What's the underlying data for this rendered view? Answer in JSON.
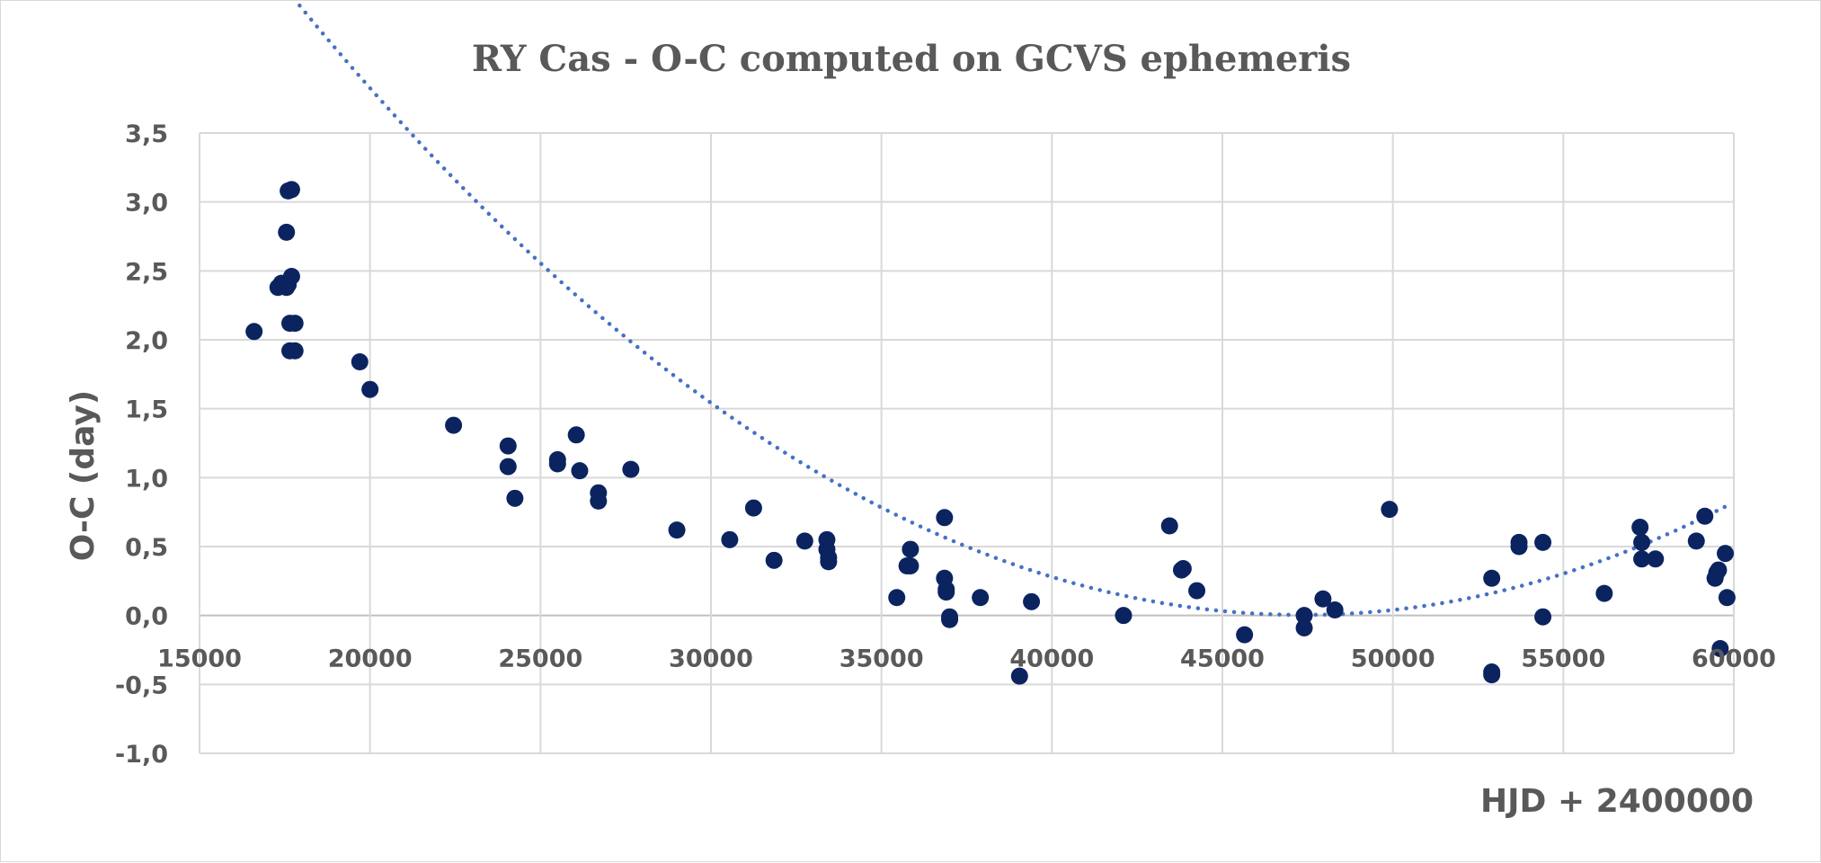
{
  "chart_data": {
    "type": "scatter",
    "title": "RY Cas - O-C computed on GCVS ephemeris",
    "xlabel": "HJD + 2400000",
    "ylabel": "O-C (day)",
    "xlim": [
      15000,
      60000
    ],
    "ylim": [
      -1.0,
      3.5
    ],
    "x_ticks": [
      15000,
      20000,
      25000,
      30000,
      35000,
      40000,
      45000,
      50000,
      55000,
      60000
    ],
    "x_tick_labels": [
      "15000",
      "20000",
      "25000",
      "30000",
      "35000",
      "40000",
      "45000",
      "50000",
      "55000",
      "60000"
    ],
    "y_ticks": [
      3.5,
      3.0,
      2.5,
      2.0,
      1.5,
      1.0,
      0.5,
      0.0,
      -0.5,
      -1.0
    ],
    "y_tick_labels": [
      "3,5",
      "3,0",
      "2,5",
      "2,0",
      "1,5",
      "1,0",
      "0,5",
      "0,0",
      "-0,5",
      "-1,0"
    ],
    "grid": true,
    "legend": "none",
    "colors": {
      "points": "#0b2460",
      "trend": "#4472c4",
      "grid": "#d9d9d9",
      "text": "#595959"
    },
    "series": [
      {
        "marker": "circle",
        "x": [
          16600,
          17300,
          17400,
          17550,
          17600,
          17700,
          17550,
          17650,
          17600,
          17700,
          17800,
          17650,
          17800,
          19700,
          20000,
          22450,
          24050,
          24050,
          24250,
          25500,
          25500,
          26050,
          26150,
          26700,
          26700,
          27650,
          29000,
          30550,
          31250,
          31850,
          32750,
          33400,
          33400,
          33450,
          33450,
          35450,
          35750,
          35850,
          35850,
          36850,
          36850,
          36900,
          36900,
          37000,
          37000,
          37900,
          39050,
          39400,
          42100,
          43450,
          43800,
          43850,
          44250,
          45650,
          47400,
          47400,
          47950,
          48300,
          49900,
          52900,
          52900,
          52900,
          53700,
          53700,
          54400,
          54400,
          56200,
          57250,
          57300,
          57300,
          57700,
          58900,
          59150,
          59450,
          59500,
          59550,
          59600,
          59750,
          59800
        ],
        "y": [
          2.06,
          2.38,
          2.41,
          2.38,
          3.08,
          3.09,
          2.78,
          2.12,
          2.4,
          2.46,
          2.12,
          1.92,
          1.92,
          1.84,
          1.64,
          1.38,
          1.23,
          1.08,
          0.85,
          1.13,
          1.1,
          1.31,
          1.05,
          0.89,
          0.83,
          1.06,
          0.62,
          0.55,
          0.78,
          0.4,
          0.54,
          0.55,
          0.48,
          0.42,
          0.39,
          0.13,
          0.36,
          0.36,
          0.48,
          0.71,
          0.27,
          0.19,
          0.17,
          -0.01,
          -0.03,
          0.13,
          -0.44,
          0.1,
          0.0,
          0.65,
          0.33,
          0.34,
          0.18,
          -0.14,
          0.0,
          -0.09,
          0.12,
          0.04,
          0.77,
          0.27,
          -0.41,
          -0.43,
          0.5,
          0.53,
          0.53,
          -0.01,
          0.16,
          0.64,
          0.41,
          0.53,
          0.41,
          0.54,
          0.72,
          0.27,
          0.31,
          0.33,
          -0.24,
          0.45,
          0.13
        ]
      }
    ],
    "trendline": {
      "style": "dotted",
      "type": "polynomial",
      "degree": 2,
      "coefficients": [
        5.11e-09,
        -0.0004839,
        11.46
      ],
      "x_range": [
        16600,
        59800
      ]
    }
  }
}
